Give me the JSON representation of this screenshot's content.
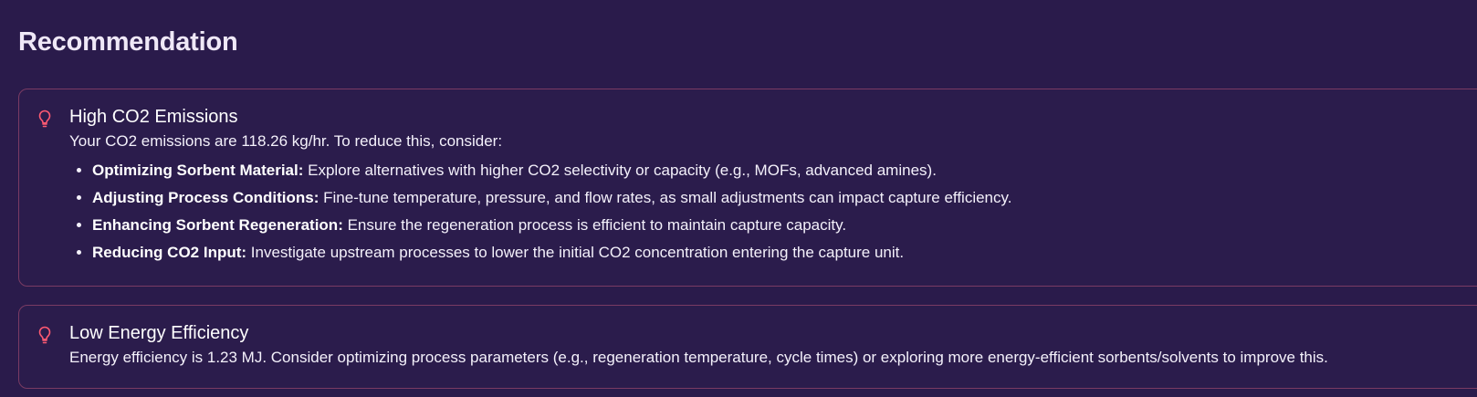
{
  "page": {
    "heading": "Recommendation"
  },
  "recommendations": [
    {
      "icon": "lightbulb-icon",
      "title": "High CO2 Emissions",
      "description": "Your CO2 emissions are 118.26 kg/hr. To reduce this, consider:",
      "items": [
        {
          "label": "Optimizing Sorbent Material:",
          "text": " Explore alternatives with higher CO2 selectivity or capacity (e.g., MOFs, advanced amines)."
        },
        {
          "label": "Adjusting Process Conditions:",
          "text": " Fine-tune temperature, pressure, and flow rates, as small adjustments can impact capture efficiency."
        },
        {
          "label": "Enhancing Sorbent Regeneration:",
          "text": " Ensure the regeneration process is efficient to maintain capture capacity."
        },
        {
          "label": "Reducing CO2 Input:",
          "text": " Investigate upstream processes to lower the initial CO2 concentration entering the capture unit."
        }
      ]
    },
    {
      "icon": "lightbulb-icon",
      "title": "Low Energy Efficiency",
      "description": "Energy efficiency is 1.23 MJ. Consider optimizing process parameters (e.g., regeneration temperature, cycle times) or exploring more energy-efficient sorbents/solvents to improve this."
    }
  ],
  "colors": {
    "background": "#2a1b4b",
    "card_border": "#7a3b63",
    "icon_accent": "#ff5a72",
    "text": "#f4f1fb"
  }
}
